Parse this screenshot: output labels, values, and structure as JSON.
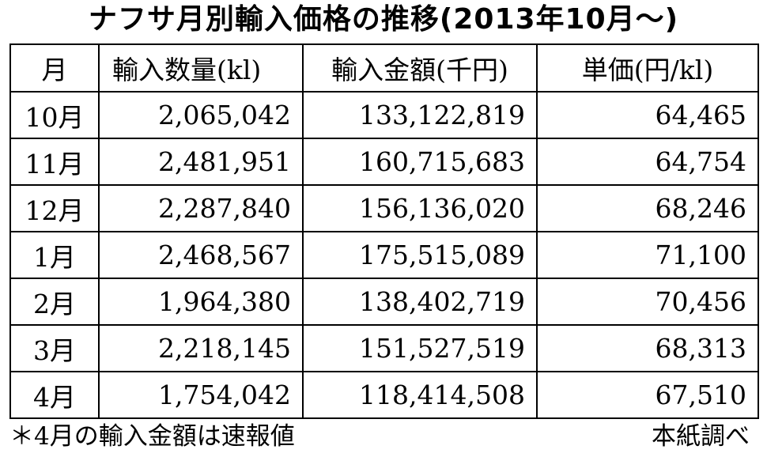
{
  "title": "ナフサ月別輸入価格の推移(2013年10月〜)",
  "table": {
    "headers": [
      "月",
      "輸入数量(kl)",
      "輸入金額(千円)",
      "単価(円/kl)"
    ],
    "rows": [
      {
        "month": "10月",
        "quantity": "2,065,042",
        "amount": "133,122,819",
        "unit_price": "64,465"
      },
      {
        "month": "11月",
        "quantity": "2,481,951",
        "amount": "160,715,683",
        "unit_price": "64,754"
      },
      {
        "month": "12月",
        "quantity": "2,287,840",
        "amount": "156,136,020",
        "unit_price": "68,246"
      },
      {
        "month": "1月",
        "quantity": "2,468,567",
        "amount": "175,515,089",
        "unit_price": "71,100"
      },
      {
        "month": "2月",
        "quantity": "1,964,380",
        "amount": "138,402,719",
        "unit_price": "70,456"
      },
      {
        "month": "3月",
        "quantity": "2,218,145",
        "amount": "151,527,519",
        "unit_price": "68,313"
      },
      {
        "month": "4月",
        "quantity": "1,754,042",
        "amount": "118,414,508",
        "unit_price": "67,510"
      }
    ]
  },
  "footer": {
    "note": "＊4月の輸入金額は速報値",
    "source": "本紙調べ"
  }
}
